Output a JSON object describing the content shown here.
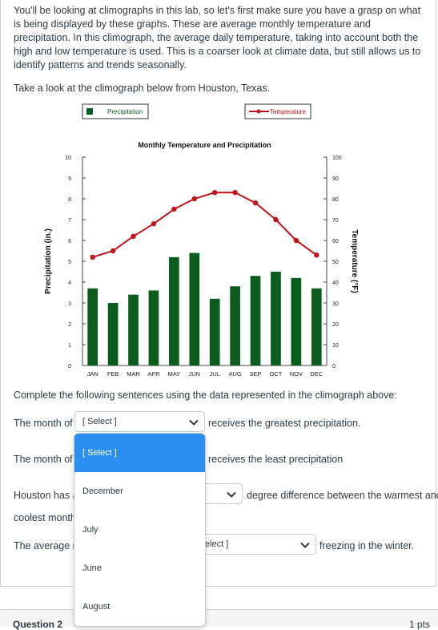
{
  "intro": "You'll be looking at climographs in this lab, so let's first make sure you have a grasp on what is being displayed by these graphs. These are average monthly temperature and precipitation. In this climograph, the average daily temperature, taking into account both the high and low temperature is used. This is a coarser look at climate data, but still allows us to identify patterns and trends seasonally.",
  "take_look": "Take a look at the climograph below from Houston, Texas.",
  "prompt": "Complete the following sentences using the data represented in the climograph above:",
  "sentences": {
    "s1_before": "The month of",
    "s1_after": "receives the greatest precipitation.",
    "s2_before": "The month of",
    "s2_after": "receives the least precipitation",
    "s3_before": "Houston has a",
    "s3_after": "degree difference between the warmest and",
    "s3_cont": "coolest month",
    "s4_before": "The average m",
    "s4_after": "freezing in the winter."
  },
  "selects": {
    "s1_value": "[ Select ]",
    "s4_value": "elect ]"
  },
  "menu": {
    "options": [
      "[ Select ]",
      "December",
      "July",
      "June",
      "August"
    ]
  },
  "question2": {
    "title": "Question 2",
    "points": "1 pts"
  },
  "colors": {
    "bar": "#0b5d1e",
    "line": "#c0141a",
    "accent": "#2b8ff2"
  },
  "chart_data": {
    "type": "bar",
    "title": "Monthly Temperature and Precipitation",
    "categories": [
      "JAN",
      "FEB",
      "MAR",
      "APR",
      "MAY",
      "JUN",
      "JUL",
      "AUG",
      "SEP",
      "OCT",
      "NOV",
      "DEC"
    ],
    "series": [
      {
        "name": "Precipitation",
        "type": "bar",
        "axis": "left",
        "values": [
          3.7,
          3.0,
          3.4,
          3.6,
          5.2,
          5.4,
          3.2,
          3.8,
          4.3,
          4.5,
          4.2,
          3.7
        ]
      },
      {
        "name": "Temperature",
        "type": "line",
        "axis": "right",
        "values": [
          52,
          55,
          62,
          68,
          75,
          80,
          83,
          83,
          78,
          70,
          60,
          53
        ]
      }
    ],
    "ylabel": "Precipitation (in.)",
    "ylabel_right": "Temperature (°F)",
    "ylim": [
      0,
      10
    ],
    "yticks": [
      "0",
      "1",
      "2",
      "3",
      "4",
      "5",
      "6",
      "7",
      "8",
      "9",
      "10"
    ],
    "ylim_right": [
      0,
      100
    ],
    "yticks_right": [
      "0",
      "10",
      "20",
      "30",
      "40",
      "50",
      "60",
      "70",
      "80",
      "90",
      "100"
    ],
    "legend": "top"
  }
}
